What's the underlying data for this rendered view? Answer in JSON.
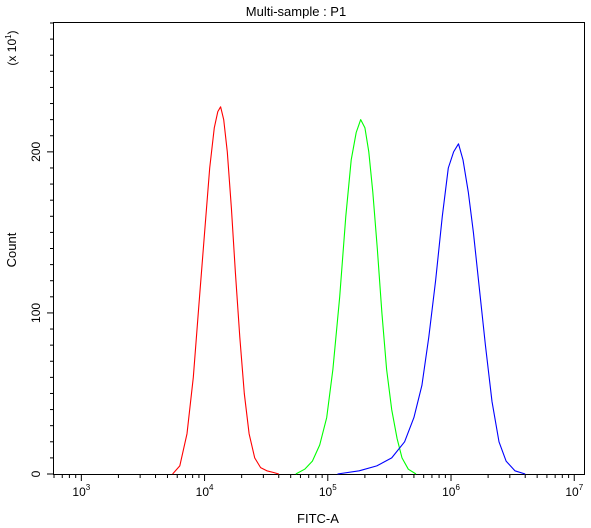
{
  "chart_data": {
    "type": "line",
    "title": "Multi-sample : P1",
    "xlabel": "FITC-A",
    "ylabel": "Count",
    "y_multiplier": {
      "base": "(x 10",
      "exponent": "1",
      "close": ")"
    },
    "x_scale": "log",
    "xlim": [
      600,
      12000000
    ],
    "ylim": [
      0,
      280
    ],
    "x_ticks": [
      {
        "value": 1000,
        "base": "10",
        "exp": "3"
      },
      {
        "value": 10000,
        "base": "10",
        "exp": "4"
      },
      {
        "value": 100000,
        "base": "10",
        "exp": "5"
      },
      {
        "value": 1000000,
        "base": "10",
        "exp": "6"
      },
      {
        "value": 10000000,
        "base": "10",
        "exp": "7"
      }
    ],
    "y_ticks": [
      {
        "value": 0,
        "label": "0"
      },
      {
        "value": 100,
        "label": "100"
      },
      {
        "value": 200,
        "label": "200"
      }
    ],
    "grid": false,
    "series": [
      {
        "color": "#ff0000",
        "x": [
          5500,
          6300,
          7200,
          8100,
          9000,
          10000,
          11000,
          12000,
          12800,
          13500,
          14300,
          15300,
          16500,
          17800,
          19300,
          21000,
          23000,
          25500,
          28500,
          32000,
          36000,
          40000
        ],
        "y": [
          0,
          5,
          25,
          60,
          105,
          150,
          190,
          215,
          225,
          228,
          220,
          200,
          165,
          125,
          85,
          50,
          25,
          10,
          4,
          2,
          1,
          0
        ]
      },
      {
        "color": "#00ff00",
        "x": [
          55000,
          65000,
          75000,
          86000,
          98000,
          110000,
          125000,
          140000,
          155000,
          170000,
          185000,
          200000,
          215000,
          232000,
          252000,
          275000,
          300000,
          330000,
          365000,
          400000,
          450000,
          520000
        ],
        "y": [
          0,
          3,
          8,
          18,
          35,
          65,
          110,
          160,
          195,
          212,
          220,
          215,
          200,
          175,
          140,
          100,
          65,
          40,
          22,
          10,
          3,
          0
        ]
      },
      {
        "color": "#0000ff",
        "x": [
          120000,
          180000,
          250000,
          330000,
          420000,
          500000,
          580000,
          660000,
          750000,
          850000,
          950000,
          1050000,
          1150000,
          1250000,
          1380000,
          1520000,
          1700000,
          1900000,
          2150000,
          2450000,
          2800000,
          3300000,
          4000000
        ],
        "y": [
          0,
          2,
          5,
          10,
          20,
          35,
          55,
          85,
          120,
          160,
          190,
          200,
          205,
          195,
          175,
          150,
          115,
          80,
          45,
          20,
          8,
          2,
          0
        ]
      }
    ]
  }
}
